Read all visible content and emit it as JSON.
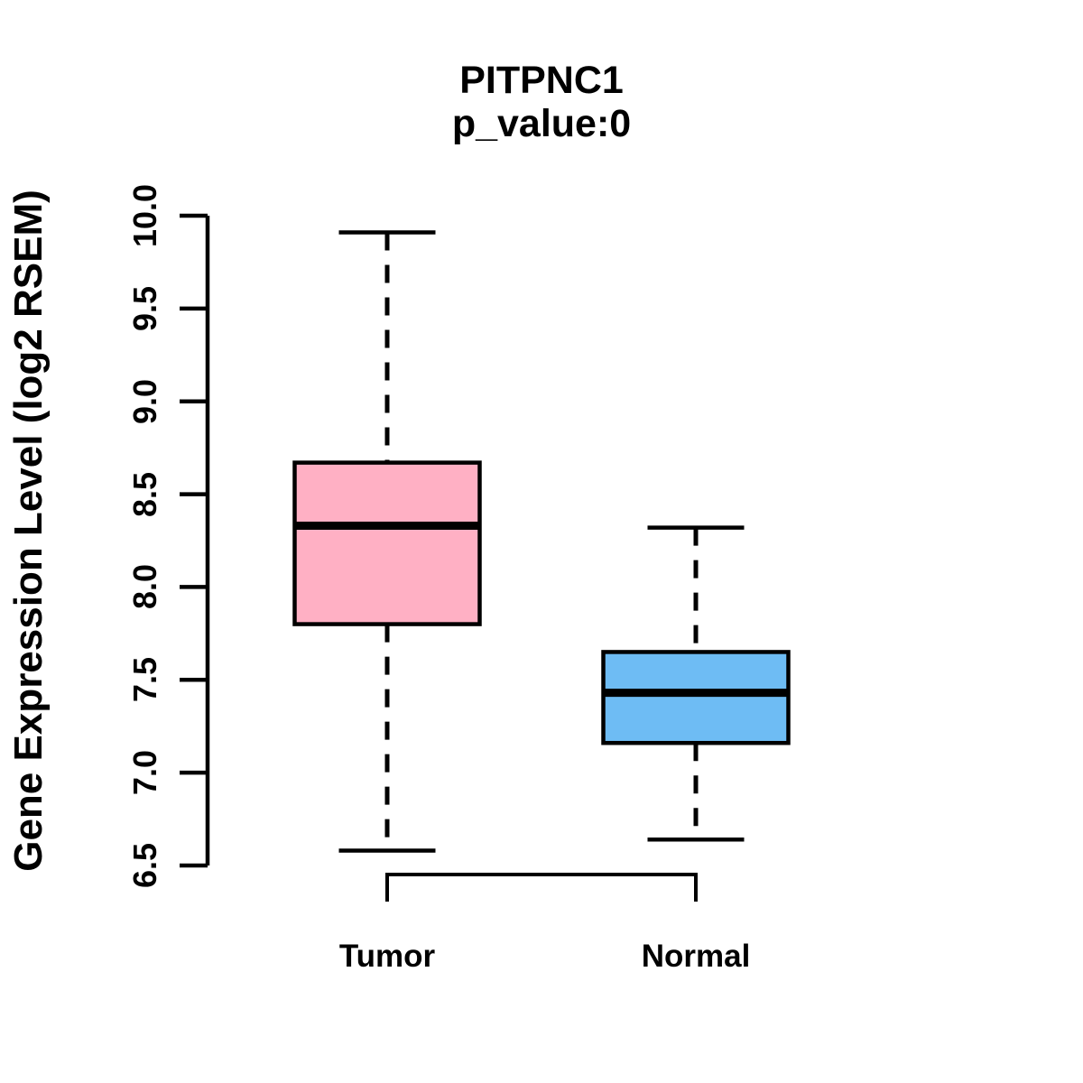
{
  "chart_data": {
    "type": "boxplot",
    "title": "PITPNC1",
    "subtitle": "p_value:0",
    "ylabel": "Gene Expression Level (log2 RSEM)",
    "xlabel": "",
    "categories": [
      "Tumor",
      "Normal"
    ],
    "series": [
      {
        "name": "Tumor",
        "color": "#FFB0C4",
        "whisker_low": 6.58,
        "q1": 7.8,
        "median": 8.33,
        "q3": 8.67,
        "whisker_high": 9.91
      },
      {
        "name": "Normal",
        "color": "#6EBCF4",
        "whisker_low": 6.64,
        "q1": 7.16,
        "median": 7.43,
        "q3": 7.65,
        "whisker_high": 8.32
      }
    ],
    "ylim": [
      6.5,
      10.0
    ],
    "yticks": [
      "6.5",
      "7.0",
      "7.5",
      "8.0",
      "8.5",
      "9.0",
      "9.5",
      "10.0"
    ],
    "grid": false,
    "legend": false,
    "line_color": "#000000",
    "background": "#FFFFFF"
  }
}
